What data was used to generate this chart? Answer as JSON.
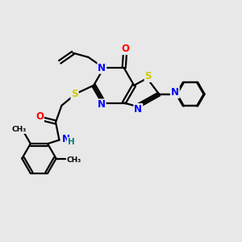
{
  "bg_color": "#e8e8e8",
  "bond_color": "#000000",
  "N_color": "#0000ff",
  "O_color": "#ff0000",
  "S_color": "#cccc00",
  "C_color": "#000000",
  "H_color": "#008080",
  "line_width": 1.6,
  "font_size_atom": 8.5,
  "fig_w": 3.0,
  "fig_h": 3.0,
  "dpi": 100,
  "xlim": [
    0,
    10
  ],
  "ylim": [
    0,
    10
  ]
}
